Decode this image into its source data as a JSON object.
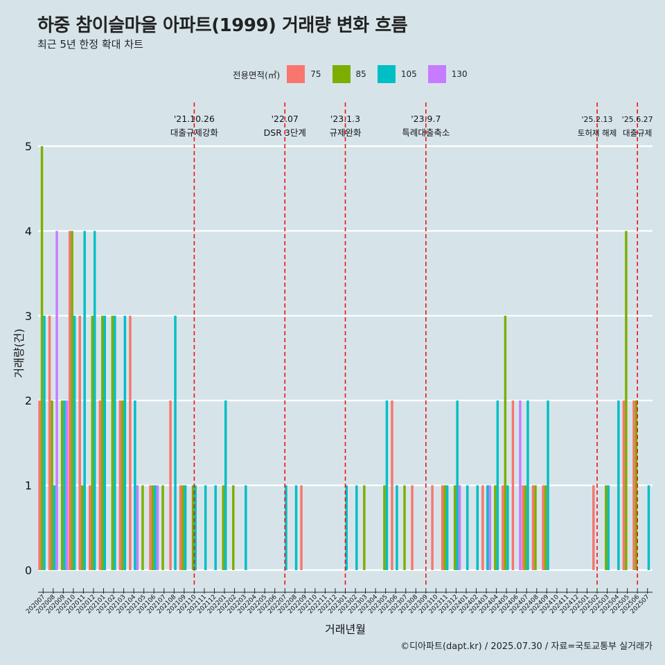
{
  "title": "하중 참이슬마을 아파트(1999) 거래량 변화 흐름",
  "subtitle": "최근 5년 한정 확대 차트",
  "caption": "©디아파트(dapt.kr) / 2025.07.30 / 자료=국토교통부 실거래가",
  "chart_data": {
    "type": "bar",
    "xlabel": "거래년월",
    "ylabel": "거래량(건)",
    "ylim": [
      0,
      5
    ],
    "yticks": [
      0,
      1,
      2,
      3,
      4,
      5
    ],
    "legend": {
      "title": "전용면적(㎡)",
      "placement": "top",
      "entries": [
        {
          "label": "75",
          "color": "#F8766D"
        },
        {
          "label": "85",
          "color": "#7CAE00"
        },
        {
          "label": "105",
          "color": "#00BFC4"
        },
        {
          "label": "130",
          "color": "#C77CFF"
        }
      ]
    },
    "categories": [
      "202007",
      "202008",
      "202009",
      "202010",
      "202011",
      "202012",
      "202101",
      "202102",
      "202103",
      "202104",
      "202105",
      "202106",
      "202107",
      "202108",
      "202109",
      "202110",
      "202111",
      "202112",
      "202201",
      "202202",
      "202203",
      "202204",
      "202205",
      "202206",
      "202207",
      "202208",
      "202209",
      "202210",
      "202211",
      "202212",
      "202301",
      "202302",
      "202303",
      "202304",
      "202305",
      "202306",
      "202307",
      "202308",
      "202309",
      "202310",
      "202311",
      "202312",
      "202401",
      "202402",
      "202403",
      "202404",
      "202405",
      "202406",
      "202407",
      "202408",
      "202409",
      "202410",
      "202411",
      "202412",
      "202501",
      "202502",
      "202503",
      "202504",
      "202505",
      "202506",
      "202507"
    ],
    "series": [
      {
        "name": "75",
        "values": [
          2,
          3,
          0,
          4,
          3,
          1,
          2,
          0,
          2,
          3,
          0,
          1,
          0,
          2,
          1,
          0,
          0,
          0,
          0,
          0,
          0,
          0,
          0,
          0,
          0,
          0,
          1,
          0,
          0,
          0,
          0,
          0,
          0,
          0,
          0,
          2,
          0,
          1,
          0,
          1,
          1,
          0,
          0,
          0,
          1,
          0,
          1,
          2,
          1,
          1,
          1,
          0,
          0,
          0,
          0,
          1,
          0,
          0,
          2,
          2,
          0
        ]
      },
      {
        "name": "85",
        "values": [
          5,
          2,
          2,
          4,
          1,
          3,
          3,
          3,
          2,
          0,
          1,
          1,
          1,
          0,
          1,
          1,
          0,
          0,
          1,
          1,
          0,
          0,
          0,
          0,
          0,
          0,
          0,
          0,
          0,
          0,
          0,
          0,
          1,
          0,
          1,
          0,
          1,
          0,
          0,
          0,
          1,
          1,
          0,
          0,
          0,
          1,
          3,
          0,
          1,
          1,
          1,
          0,
          0,
          0,
          0,
          0,
          1,
          0,
          4,
          2,
          0
        ]
      },
      {
        "name": "105",
        "values": [
          3,
          1,
          2,
          3,
          4,
          4,
          3,
          3,
          3,
          2,
          0,
          1,
          0,
          3,
          1,
          1,
          1,
          1,
          2,
          0,
          1,
          0,
          0,
          0,
          1,
          1,
          0,
          0,
          0,
          0,
          1,
          1,
          0,
          0,
          2,
          1,
          0,
          0,
          0,
          0,
          1,
          2,
          1,
          1,
          1,
          2,
          1,
          0,
          2,
          0,
          2,
          0,
          0,
          0,
          0,
          0,
          1,
          2,
          0,
          0,
          1
        ]
      },
      {
        "name": "130",
        "values": [
          0,
          4,
          2,
          0,
          0,
          0,
          0,
          0,
          0,
          1,
          0,
          1,
          0,
          0,
          0,
          0,
          0,
          0,
          0,
          0,
          0,
          0,
          0,
          0,
          0,
          0,
          0,
          0,
          0,
          0,
          0,
          0,
          0,
          0,
          0,
          0,
          0,
          0,
          0,
          0,
          0,
          1,
          0,
          0,
          1,
          0,
          0,
          2,
          0,
          0,
          0,
          0,
          0,
          0,
          0,
          0,
          0,
          0,
          0,
          0,
          0
        ]
      }
    ],
    "annotations": [
      {
        "at": "202110",
        "label": "'21.10.26",
        "sublabel": "대출규제강화"
      },
      {
        "at": "202207",
        "label": "'22.07",
        "sublabel": "DSR 3단계"
      },
      {
        "at": "202301",
        "label": "'23.1.3",
        "sublabel": "규제완화"
      },
      {
        "at": "202309",
        "label": "'23.9.7",
        "sublabel": "특례대출축소"
      },
      {
        "at": "202502",
        "label": "'25.2.13",
        "sublabel": "토허제 해제"
      },
      {
        "at": "202506",
        "label": "'25.6.27",
        "sublabel": "대출규제"
      }
    ],
    "grid": true
  }
}
